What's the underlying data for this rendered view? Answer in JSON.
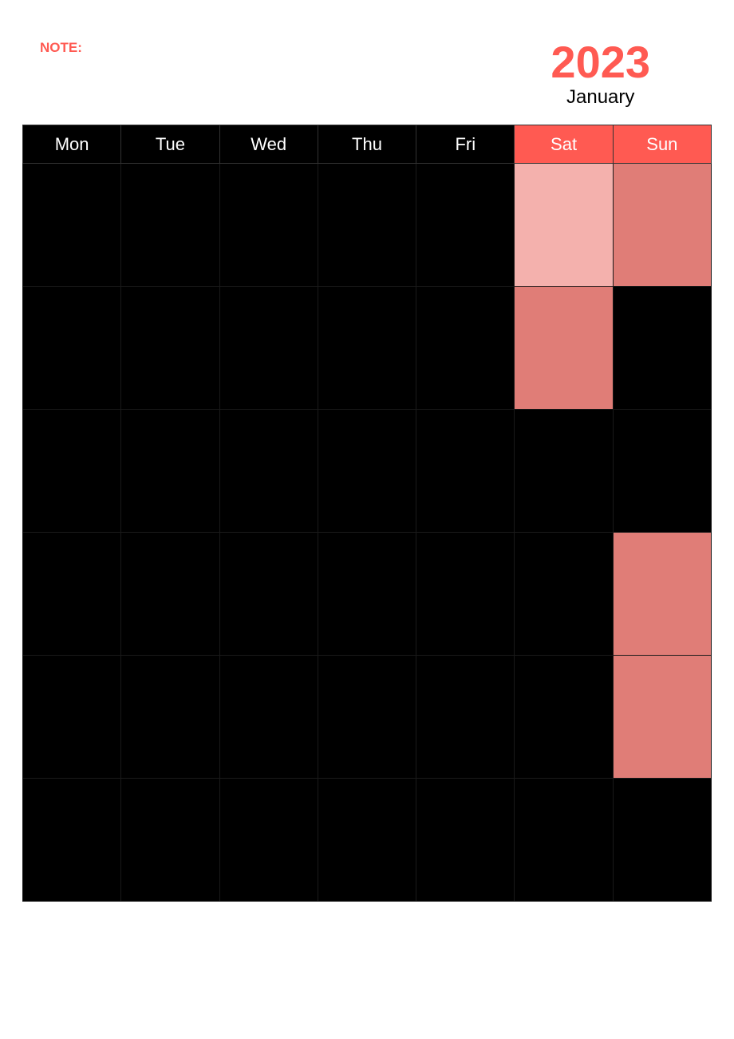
{
  "colors": {
    "accent": "#ff5a52",
    "accent_light": "#f4b1ad",
    "accent_mid": "#e07d77",
    "black": "#000000",
    "white": "#ffffff"
  },
  "note_label": "NOTE:",
  "year": "2023",
  "month": "January",
  "day_headers": [
    "Mon",
    "Tue",
    "Wed",
    "Thu",
    "Fri",
    "Sat",
    "Sun"
  ],
  "weekend_columns": [
    5,
    6
  ],
  "grid": {
    "rows": 6,
    "cols": 7,
    "default_cell_color": "#000000",
    "cell_overrides": [
      {
        "row": 0,
        "col": 5,
        "color": "#f4b1ad"
      },
      {
        "row": 0,
        "col": 6,
        "color": "#e07d77"
      },
      {
        "row": 1,
        "col": 5,
        "color": "#e07d77"
      },
      {
        "row": 3,
        "col": 6,
        "color": "#e07d77"
      },
      {
        "row": 4,
        "col": 6,
        "color": "#e07d77"
      }
    ]
  },
  "typography": {
    "note_fontsize": 17,
    "year_fontsize": 56,
    "month_fontsize": 24,
    "header_fontsize": 22
  }
}
